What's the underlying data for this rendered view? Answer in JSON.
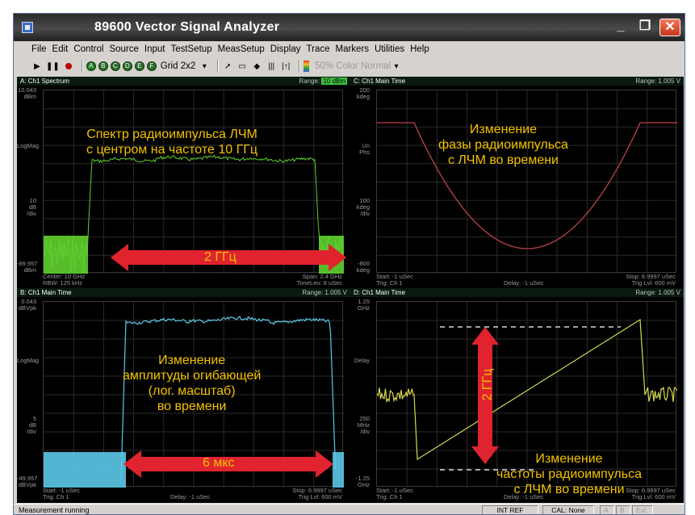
{
  "window": {
    "title": "89600 Vector Signal Analyzer"
  },
  "menu": [
    "File",
    "Edit",
    "Control",
    "Source",
    "Input",
    "TestSetup",
    "MeasSetup",
    "Display",
    "Trace",
    "Markers",
    "Utilities",
    "Help"
  ],
  "toolbar": {
    "channels": [
      "A",
      "B",
      "C",
      "D",
      "E",
      "F"
    ],
    "grid_label": "Grid 2x2",
    "percent": "50%",
    "color_label": "Color Normal"
  },
  "panels": {
    "a": {
      "title": "A: Ch1 Spectrum",
      "range_label": "Range:",
      "range_value": "10 dBm",
      "y_top": "10.043\ndBm",
      "y_mid": "LogMag",
      "y_scale": "10\ndB\n/div",
      "y_bot": "-89.957\ndBm",
      "foot_l1": "Center: 10 GHz",
      "foot_l2": "RBW: 125 kHz",
      "foot_r1": "Span: 2.4 GHz",
      "foot_r2": "TimeLen: 8 uSec"
    },
    "b": {
      "title": "B: Ch1 Main Time",
      "range": "Range: 1.005 V",
      "y_top": "0.043\ndBVpk",
      "y_mid": "LogMag",
      "y_scale": "5\ndB\n/div",
      "y_bot": "-49.957\ndBVpk",
      "foot_l1": "Start: -1 uSec",
      "foot_l2": "Trig: Ch 1",
      "foot_c": "Delay: -1 uSec",
      "foot_r1": "Stop: 6.9997 uSec",
      "foot_r2": "Trig Lvl: 600 mV"
    },
    "c": {
      "title": "C: Ch1 Main Time",
      "range": "Range: 1.005 V",
      "y_top": "200\nkdeg",
      "y_mid": "Un Phs",
      "y_scale": "100\nkdeg\n/div",
      "y_bot": "-800\nkdeg",
      "foot_l1": "Start: -1 uSec",
      "foot_l2": "Trig: Ch 1",
      "foot_c": "Delay: -1 uSec",
      "foot_r1": "Stop: 6.9997 uSec",
      "foot_r2": "Trig Lvl: 600 mV"
    },
    "d": {
      "title": "D: Ch1 Main Time",
      "range": "Range: 1.005 V",
      "y_top": "1.25\nGHz",
      "y_mid": "Delay",
      "y_scale": "250\nMHz\n/div",
      "y_bot": "-1.25\nGHz",
      "foot_l1": "Start: -1 uSec",
      "foot_l2": "Trig: Ch 1",
      "foot_c": "Delay: -1 uSec",
      "foot_r1": "Stop: 6.9997 uSec",
      "foot_r2": "Trig Lvl: 600 mV"
    }
  },
  "annotations": {
    "spectrum": "Спектр радиоимпульса ЛЧМ\nс центром на частоте 10 ГГц",
    "bw_spectrum": "2 ГГц",
    "phase": "Изменение\nфазы радиоимпульса\nс ЛЧМ во времени",
    "amplitude": "Изменение\nамплитуды огибающей\n(лог. масштаб)\nво времени",
    "duration": "6 мкс",
    "bw_freq": "2 ГГц",
    "frequency": "Изменение\nчастоты радиоимпульса\nс ЛЧМ во времени"
  },
  "status": {
    "left": "Measurement running",
    "int_ref": "INT REF",
    "cal": "CAL: None",
    "mini": [
      "A",
      "B",
      "Ext"
    ]
  },
  "colors": {
    "spectrum_trace": "#5fd02f",
    "envelope_trace": "#5cc8e8",
    "phase_trace": "#c0404a",
    "freq_trace": "#d8d850",
    "annotation_text": "#f2c200",
    "arrow": "#e0232e"
  }
}
